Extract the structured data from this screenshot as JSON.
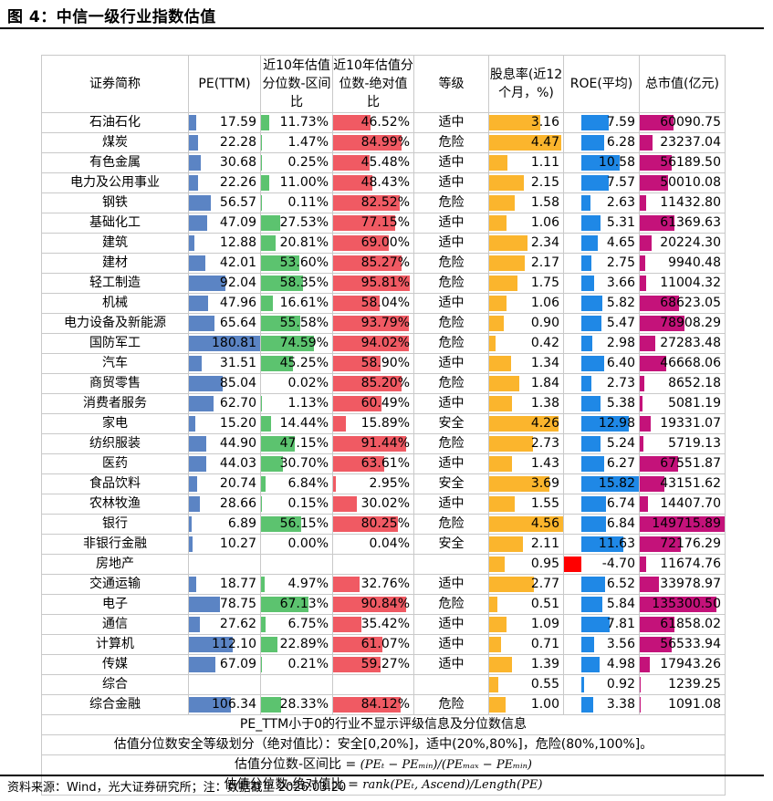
{
  "figure": {
    "title": "图 4：中信一级行业指数估值",
    "source": "资料来源：Wind，光大证券研究所；注：数据截至 2026.03.20"
  },
  "colors": {
    "pe": "#5b84c4",
    "range_pct": "#5cc36f",
    "abs_pct": "#f05a63",
    "dividend": "#fbb52d",
    "roe": "#1f88e6",
    "roe_negative": "#ff0000",
    "market_cap": "#c4127a"
  },
  "table": {
    "headers": {
      "name": "证券简称",
      "pe": "PE(TTM)",
      "range_pct": "近10年估值分位数-区间比",
      "abs_pct": "近10年估值分位数-绝对值比",
      "grade": "等级",
      "dividend": "股息率(近12个月，%)",
      "roe": "ROE(平均)",
      "market_cap": "总市值(亿元)"
    },
    "rows": [
      {
        "name": "石油石化",
        "pe": "17.59",
        "pe_v": 17.59,
        "range": "11.73%",
        "range_v": 11.73,
        "abs": "46.52%",
        "abs_v": 46.52,
        "grade": "适中",
        "div": "3.16",
        "div_v": 3.16,
        "roe": "7.59",
        "roe_v": 7.59,
        "cap": "60090.75",
        "cap_v": 60090.75
      },
      {
        "name": "煤炭",
        "pe": "22.28",
        "pe_v": 22.28,
        "range": "1.47%",
        "range_v": 1.47,
        "abs": "84.99%",
        "abs_v": 84.99,
        "grade": "危险",
        "div": "4.47",
        "div_v": 4.47,
        "roe": "6.28",
        "roe_v": 6.28,
        "cap": "23237.04",
        "cap_v": 23237.04
      },
      {
        "name": "有色金属",
        "pe": "30.68",
        "pe_v": 30.68,
        "range": "0.25%",
        "range_v": 0.25,
        "abs": "45.48%",
        "abs_v": 45.48,
        "grade": "适中",
        "div": "1.11",
        "div_v": 1.11,
        "roe": "10.58",
        "roe_v": 10.58,
        "cap": "56189.50",
        "cap_v": 56189.5
      },
      {
        "name": "电力及公用事业",
        "pe": "22.26",
        "pe_v": 22.26,
        "range": "11.00%",
        "range_v": 11.0,
        "abs": "48.43%",
        "abs_v": 48.43,
        "grade": "适中",
        "div": "2.15",
        "div_v": 2.15,
        "roe": "7.57",
        "roe_v": 7.57,
        "cap": "50010.08",
        "cap_v": 50010.08
      },
      {
        "name": "钢铁",
        "pe": "56.57",
        "pe_v": 56.57,
        "range": "0.11%",
        "range_v": 0.11,
        "abs": "82.52%",
        "abs_v": 82.52,
        "grade": "危险",
        "div": "1.58",
        "div_v": 1.58,
        "roe": "2.63",
        "roe_v": 2.63,
        "cap": "11432.80",
        "cap_v": 11432.8
      },
      {
        "name": "基础化工",
        "pe": "47.09",
        "pe_v": 47.09,
        "range": "27.53%",
        "range_v": 27.53,
        "abs": "77.15%",
        "abs_v": 77.15,
        "grade": "适中",
        "div": "1.06",
        "div_v": 1.06,
        "roe": "5.31",
        "roe_v": 5.31,
        "cap": "61369.63",
        "cap_v": 61369.63
      },
      {
        "name": "建筑",
        "pe": "12.88",
        "pe_v": 12.88,
        "range": "20.81%",
        "range_v": 20.81,
        "abs": "69.00%",
        "abs_v": 69.0,
        "grade": "适中",
        "div": "2.34",
        "div_v": 2.34,
        "roe": "4.65",
        "roe_v": 4.65,
        "cap": "20224.30",
        "cap_v": 20224.3
      },
      {
        "name": "建材",
        "pe": "42.01",
        "pe_v": 42.01,
        "range": "53.60%",
        "range_v": 53.6,
        "abs": "85.27%",
        "abs_v": 85.27,
        "grade": "危险",
        "div": "2.17",
        "div_v": 2.17,
        "roe": "2.75",
        "roe_v": 2.75,
        "cap": "9940.48",
        "cap_v": 9940.48
      },
      {
        "name": "轻工制造",
        "pe": "92.04",
        "pe_v": 92.04,
        "range": "58.35%",
        "range_v": 58.35,
        "abs": "95.81%",
        "abs_v": 95.81,
        "grade": "危险",
        "div": "1.75",
        "div_v": 1.75,
        "roe": "3.66",
        "roe_v": 3.66,
        "cap": "11004.32",
        "cap_v": 11004.32
      },
      {
        "name": "机械",
        "pe": "47.96",
        "pe_v": 47.96,
        "range": "16.61%",
        "range_v": 16.61,
        "abs": "58.04%",
        "abs_v": 58.04,
        "grade": "适中",
        "div": "1.06",
        "div_v": 1.06,
        "roe": "5.82",
        "roe_v": 5.82,
        "cap": "68623.05",
        "cap_v": 68623.05
      },
      {
        "name": "电力设备及新能源",
        "pe": "65.64",
        "pe_v": 65.64,
        "range": "55.58%",
        "range_v": 55.58,
        "abs": "93.79%",
        "abs_v": 93.79,
        "grade": "危险",
        "div": "0.90",
        "div_v": 0.9,
        "roe": "5.47",
        "roe_v": 5.47,
        "cap": "78908.29",
        "cap_v": 78908.29
      },
      {
        "name": "国防军工",
        "pe": "180.81",
        "pe_v": 180.81,
        "range": "74.59%",
        "range_v": 74.59,
        "abs": "94.02%",
        "abs_v": 94.02,
        "grade": "危险",
        "div": "0.42",
        "div_v": 0.42,
        "roe": "2.98",
        "roe_v": 2.98,
        "cap": "27283.48",
        "cap_v": 27283.48
      },
      {
        "name": "汽车",
        "pe": "31.51",
        "pe_v": 31.51,
        "range": "45.25%",
        "range_v": 45.25,
        "abs": "58.90%",
        "abs_v": 58.9,
        "grade": "适中",
        "div": "1.34",
        "div_v": 1.34,
        "roe": "6.40",
        "roe_v": 6.4,
        "cap": "46668.06",
        "cap_v": 46668.06
      },
      {
        "name": "商贸零售",
        "pe": "85.04",
        "pe_v": 85.04,
        "range": "0.02%",
        "range_v": 0.02,
        "abs": "85.20%",
        "abs_v": 85.2,
        "grade": "危险",
        "div": "1.84",
        "div_v": 1.84,
        "roe": "2.73",
        "roe_v": 2.73,
        "cap": "8652.18",
        "cap_v": 8652.18
      },
      {
        "name": "消费者服务",
        "pe": "62.70",
        "pe_v": 62.7,
        "range": "1.13%",
        "range_v": 1.13,
        "abs": "60.49%",
        "abs_v": 60.49,
        "grade": "适中",
        "div": "1.38",
        "div_v": 1.38,
        "roe": "5.38",
        "roe_v": 5.38,
        "cap": "5081.19",
        "cap_v": 5081.19
      },
      {
        "name": "家电",
        "pe": "15.20",
        "pe_v": 15.2,
        "range": "14.44%",
        "range_v": 14.44,
        "abs": "15.89%",
        "abs_v": 15.89,
        "grade": "安全",
        "div": "4.26",
        "div_v": 4.26,
        "roe": "12.98",
        "roe_v": 12.98,
        "cap": "19331.07",
        "cap_v": 19331.07
      },
      {
        "name": "纺织服装",
        "pe": "44.90",
        "pe_v": 44.9,
        "range": "47.15%",
        "range_v": 47.15,
        "abs": "91.44%",
        "abs_v": 91.44,
        "grade": "危险",
        "div": "2.73",
        "div_v": 2.73,
        "roe": "5.24",
        "roe_v": 5.24,
        "cap": "5719.13",
        "cap_v": 5719.13
      },
      {
        "name": "医药",
        "pe": "44.03",
        "pe_v": 44.03,
        "range": "30.70%",
        "range_v": 30.7,
        "abs": "63.61%",
        "abs_v": 63.61,
        "grade": "适中",
        "div": "1.43",
        "div_v": 1.43,
        "roe": "6.27",
        "roe_v": 6.27,
        "cap": "67551.87",
        "cap_v": 67551.87
      },
      {
        "name": "食品饮料",
        "pe": "20.74",
        "pe_v": 20.74,
        "range": "6.84%",
        "range_v": 6.84,
        "abs": "2.95%",
        "abs_v": 2.95,
        "grade": "安全",
        "div": "3.69",
        "div_v": 3.69,
        "roe": "15.82",
        "roe_v": 15.82,
        "cap": "43151.62",
        "cap_v": 43151.62
      },
      {
        "name": "农林牧渔",
        "pe": "28.66",
        "pe_v": 28.66,
        "range": "0.15%",
        "range_v": 0.15,
        "abs": "30.02%",
        "abs_v": 30.02,
        "grade": "适中",
        "div": "1.55",
        "div_v": 1.55,
        "roe": "6.74",
        "roe_v": 6.74,
        "cap": "14407.70",
        "cap_v": 14407.7
      },
      {
        "name": "银行",
        "pe": "6.89",
        "pe_v": 6.89,
        "range": "56.15%",
        "range_v": 56.15,
        "abs": "80.25%",
        "abs_v": 80.25,
        "grade": "危险",
        "div": "4.56",
        "div_v": 4.56,
        "roe": "6.84",
        "roe_v": 6.84,
        "cap": "149715.89",
        "cap_v": 149715.89
      },
      {
        "name": "非银行金融",
        "pe": "10.27",
        "pe_v": 10.27,
        "range": "0.00%",
        "range_v": 0.0,
        "abs": "0.04%",
        "abs_v": 0.04,
        "grade": "安全",
        "div": "2.11",
        "div_v": 2.11,
        "roe": "11.63",
        "roe_v": 11.63,
        "cap": "72176.29",
        "cap_v": 72176.29
      },
      {
        "name": "房地产",
        "pe": "",
        "pe_v": 0,
        "range": "",
        "range_v": 0,
        "abs": "",
        "abs_v": 0,
        "grade": "",
        "div": "0.95",
        "div_v": 0.95,
        "roe": "-4.70",
        "roe_v": -4.7,
        "cap": "11674.76",
        "cap_v": 11674.76
      },
      {
        "name": "交通运输",
        "pe": "18.77",
        "pe_v": 18.77,
        "range": "4.97%",
        "range_v": 4.97,
        "abs": "32.76%",
        "abs_v": 32.76,
        "grade": "适中",
        "div": "2.77",
        "div_v": 2.77,
        "roe": "6.52",
        "roe_v": 6.52,
        "cap": "33978.97",
        "cap_v": 33978.97
      },
      {
        "name": "电子",
        "pe": "78.75",
        "pe_v": 78.75,
        "range": "67.13%",
        "range_v": 67.13,
        "abs": "90.84%",
        "abs_v": 90.84,
        "grade": "危险",
        "div": "0.51",
        "div_v": 0.51,
        "roe": "5.84",
        "roe_v": 5.84,
        "cap": "135300.50",
        "cap_v": 135300.5
      },
      {
        "name": "通信",
        "pe": "27.62",
        "pe_v": 27.62,
        "range": "6.75%",
        "range_v": 6.75,
        "abs": "35.42%",
        "abs_v": 35.42,
        "grade": "适中",
        "div": "1.09",
        "div_v": 1.09,
        "roe": "7.81",
        "roe_v": 7.81,
        "cap": "61858.02",
        "cap_v": 61858.02
      },
      {
        "name": "计算机",
        "pe": "112.10",
        "pe_v": 112.1,
        "range": "22.89%",
        "range_v": 22.89,
        "abs": "61.07%",
        "abs_v": 61.07,
        "grade": "适中",
        "div": "0.71",
        "div_v": 0.71,
        "roe": "3.56",
        "roe_v": 3.56,
        "cap": "56533.94",
        "cap_v": 56533.94
      },
      {
        "name": "传媒",
        "pe": "67.09",
        "pe_v": 67.09,
        "range": "0.21%",
        "range_v": 0.21,
        "abs": "59.27%",
        "abs_v": 59.27,
        "grade": "适中",
        "div": "1.39",
        "div_v": 1.39,
        "roe": "4.98",
        "roe_v": 4.98,
        "cap": "17943.26",
        "cap_v": 17943.26
      },
      {
        "name": "综合",
        "pe": "",
        "pe_v": 0,
        "range": "",
        "range_v": 0,
        "abs": "",
        "abs_v": 0,
        "grade": "",
        "div": "0.55",
        "div_v": 0.55,
        "roe": "0.92",
        "roe_v": 0.92,
        "cap": "1239.25",
        "cap_v": 1239.25
      },
      {
        "name": "综合金融",
        "pe": "106.34",
        "pe_v": 106.34,
        "range": "28.33%",
        "range_v": 28.33,
        "abs": "84.12%",
        "abs_v": 84.12,
        "grade": "危险",
        "div": "1.00",
        "div_v": 1.0,
        "roe": "3.38",
        "roe_v": 3.38,
        "cap": "1091.08",
        "cap_v": 1091.08
      }
    ],
    "notes": {
      "line1": "PE_TTM小于0的行业不显示评级信息及分位数信息",
      "line2": "估值分位数安全等级划分（绝对值比）：安全[0,20%]，适中(20%,80%]，危险(80%,100%]。",
      "line3_label": "估值分位数-区间比 =",
      "line3_formula": "(PEₜ − PEₘᵢₙ)/(PEₘₐₓ − PEₘᵢₙ)",
      "line4_label": "估值分位数-绝对值比 =",
      "line4_formula": "rank(PEₜ, Ascend)/Length(PE)"
    }
  }
}
